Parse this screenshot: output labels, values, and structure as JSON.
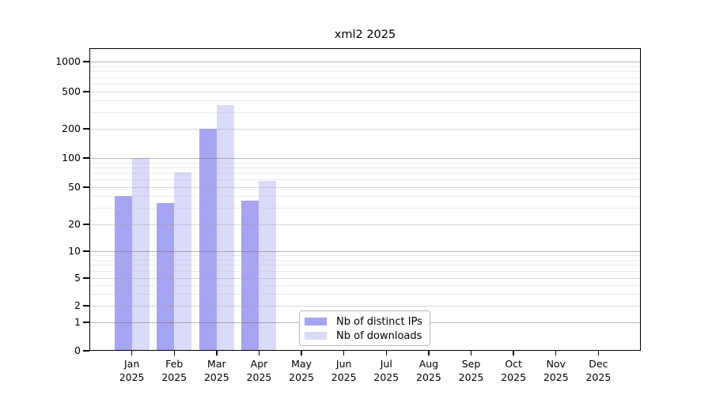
{
  "chart_data": {
    "type": "bar",
    "title": "xml2 2025",
    "year_label": "2025",
    "categories": [
      "Jan",
      "Feb",
      "Mar",
      "Apr",
      "May",
      "Jun",
      "Jul",
      "Aug",
      "Sep",
      "Oct",
      "Nov",
      "Dec"
    ],
    "series": [
      {
        "name": "Nb of distinct IPs",
        "color": "#a5a5f3",
        "values": [
          40,
          34,
          200,
          36,
          0,
          0,
          0,
          0,
          0,
          0,
          0,
          0
        ]
      },
      {
        "name": "Nb of downloads",
        "color": "#dadaf9",
        "values": [
          100,
          72,
          360,
          58,
          0,
          0,
          0,
          0,
          0,
          0,
          0,
          0
        ]
      }
    ],
    "y_ticks": [
      0,
      1,
      2,
      5,
      10,
      20,
      50,
      100,
      200,
      500,
      1000
    ],
    "yscale": "log-like",
    "ylim": [
      0,
      1400
    ],
    "grid": "on",
    "legend_position": "lower-center"
  }
}
